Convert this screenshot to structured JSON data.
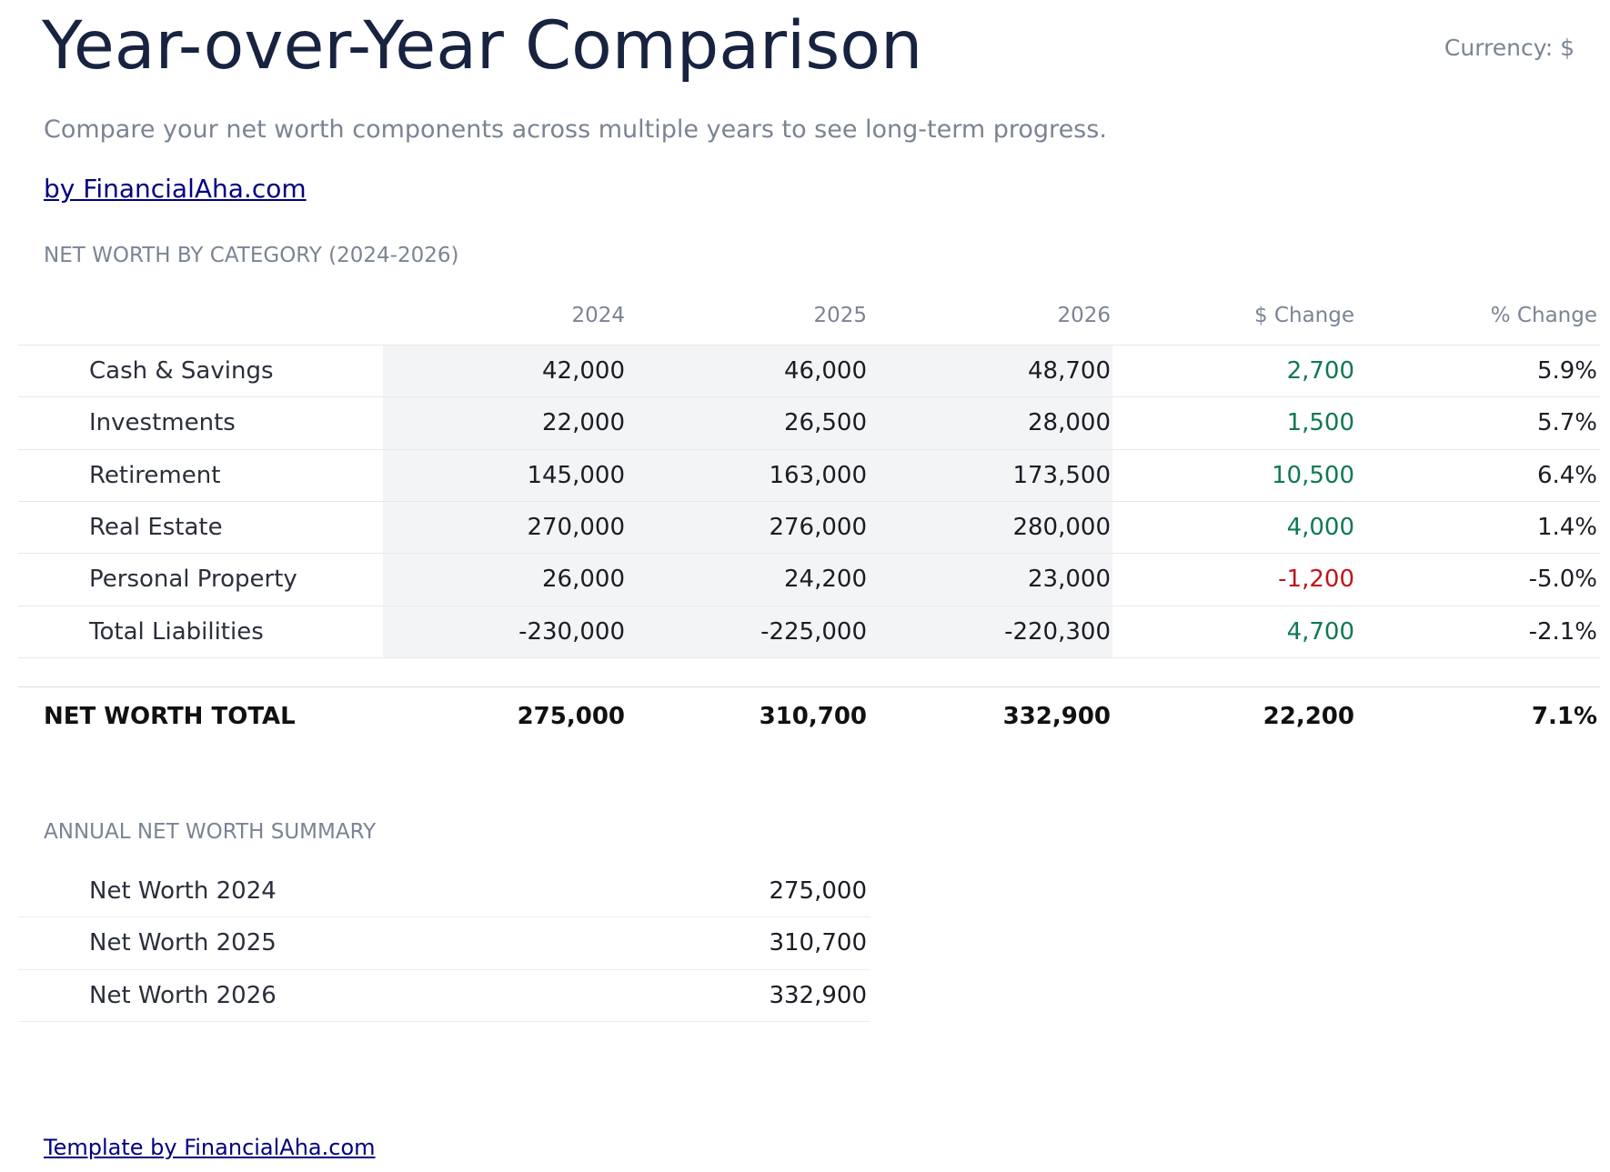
{
  "header": {
    "title": "Year-over-Year Comparison",
    "currency": "Currency: $",
    "subtitle": "Compare your net worth components across multiple years to see long-term progress.",
    "link": "by FinancialAha.com"
  },
  "table": {
    "title": "NET WORTH BY CATEGORY (2024-2026)",
    "columns": [
      "2024",
      "2025",
      "2026",
      "$ Change",
      "% Change"
    ],
    "rows": [
      {
        "label": "Cash & Savings",
        "cells": [
          "42,000",
          "46,000",
          "48,700",
          "2,700",
          "5.9%"
        ]
      },
      {
        "label": "Investments",
        "cells": [
          "22,000",
          "26,500",
          "28,000",
          "1,500",
          "5.7%"
        ]
      },
      {
        "label": "Retirement",
        "cells": [
          "145,000",
          "163,000",
          "173,500",
          "10,500",
          "6.4%"
        ]
      },
      {
        "label": "Real Estate",
        "cells": [
          "270,000",
          "276,000",
          "280,000",
          "4,000",
          "1.4%"
        ]
      },
      {
        "label": "Personal Property",
        "cells": [
          "26,000",
          "24,200",
          "23,000",
          "-1,200",
          "-5.0%"
        ]
      },
      {
        "label": "Total Liabilities",
        "cells": [
          "-230,000",
          "-225,000",
          "-220,300",
          "4,700",
          "-2.1%"
        ]
      }
    ],
    "total": {
      "label": "NET WORTH TOTAL",
      "cells": [
        "275,000",
        "310,700",
        "332,900",
        "22,200",
        "7.1%"
      ]
    }
  },
  "summary": {
    "title": "ANNUAL NET WORTH SUMMARY",
    "rows": [
      {
        "label": "Net Worth 2024",
        "value": "275,000"
      },
      {
        "label": "Net Worth 2025",
        "value": "310,700"
      },
      {
        "label": "Net Worth 2026",
        "value": "332,900"
      }
    ]
  },
  "footer": {
    "link": "Template by FinancialAha.com"
  }
}
